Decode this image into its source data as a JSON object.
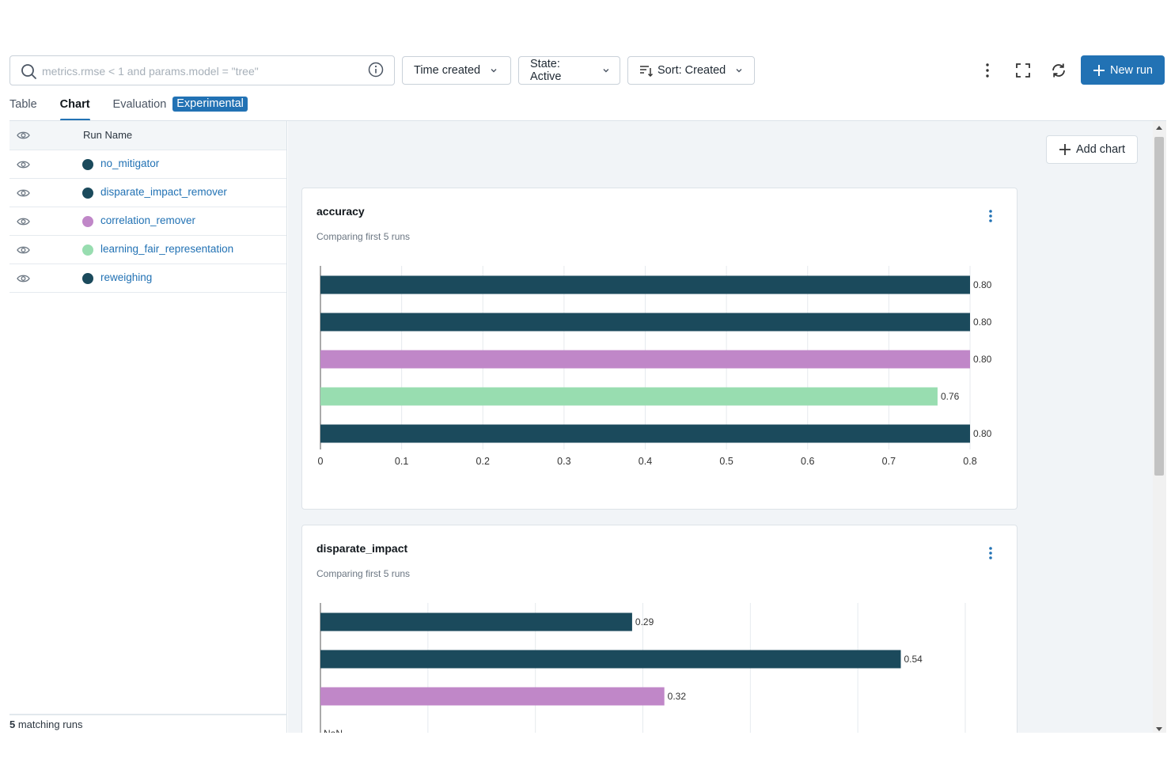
{
  "toolbar": {
    "search_placeholder": "metrics.rmse < 1 and params.model = \"tree\"",
    "time_created_label": "Time created",
    "state_label": "State: Active",
    "sort_label": "Sort: Created",
    "new_run_label": "New run"
  },
  "tabs": {
    "table": "Table",
    "chart": "Chart",
    "evaluation": "Evaluation",
    "experimental_badge": "Experimental"
  },
  "runs": {
    "header": "Run Name",
    "items": [
      {
        "name": "no_mitigator",
        "color": "#1b4a5c"
      },
      {
        "name": "disparate_impact_remover",
        "color": "#1b4a5c"
      },
      {
        "name": "correlation_remover",
        "color": "#c087c8"
      },
      {
        "name": "learning_fair_representation",
        "color": "#98ddb0"
      },
      {
        "name": "reweighing",
        "color": "#1b4a5c"
      }
    ],
    "footer_count": "5",
    "footer_text": " matching runs"
  },
  "add_chart_label": "Add chart",
  "chart_data": [
    {
      "type": "bar",
      "orientation": "horizontal",
      "title": "accuracy",
      "subtitle": "Comparing first 5 runs",
      "categories": [
        "no_mitigator",
        "disparate_impact_remover",
        "correlation_remover",
        "learning_fair_representation",
        "reweighing"
      ],
      "values": [
        0.8,
        0.8,
        0.8,
        0.76,
        0.8
      ],
      "labels": [
        "0.80",
        "0.80",
        "0.80",
        "0.76",
        "0.80"
      ],
      "colors": [
        "#1b4a5c",
        "#1b4a5c",
        "#c087c8",
        "#98ddb0",
        "#1b4a5c"
      ],
      "xlim": [
        0,
        0.8
      ],
      "xticks": [
        "0",
        "0.1",
        "0.2",
        "0.3",
        "0.4",
        "0.5",
        "0.6",
        "0.7",
        "0.8"
      ],
      "grid": true
    },
    {
      "type": "bar",
      "orientation": "horizontal",
      "title": "disparate_impact",
      "subtitle": "Comparing first 5 runs",
      "categories": [
        "no_mitigator",
        "disparate_impact_remover",
        "correlation_remover",
        "learning_fair_representation",
        "reweighing"
      ],
      "values": [
        0.29,
        0.54,
        0.32,
        null,
        null
      ],
      "labels": [
        "0.29",
        "0.54",
        "0.32",
        "NaN",
        ""
      ],
      "colors": [
        "#1b4a5c",
        "#1b4a5c",
        "#c087c8",
        "#98ddb0",
        "#1b4a5c"
      ],
      "xlim": [
        0,
        0.6
      ],
      "grid": true
    }
  ]
}
